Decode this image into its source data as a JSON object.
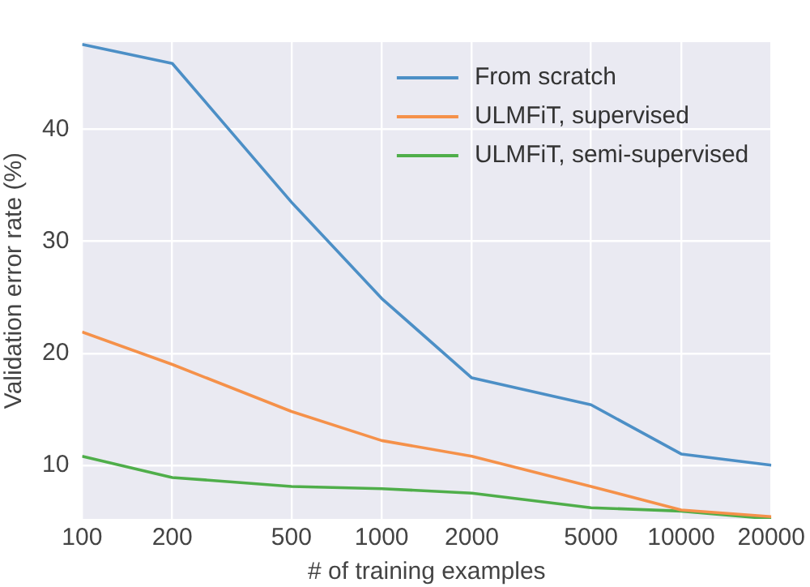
{
  "chart_data": {
    "type": "line",
    "xlabel": "# of training examples",
    "ylabel": "Validation error rate (%)",
    "log": "x",
    "x": [
      100,
      200,
      500,
      1000,
      2000,
      5000,
      10000,
      20000
    ],
    "xlim": [
      100,
      20000
    ],
    "xticks": [
      100,
      200,
      500,
      1000,
      2000,
      5000,
      10000,
      20000
    ],
    "ylim": [
      5.2,
      47.8
    ],
    "yticks": [
      10,
      20,
      30,
      40
    ],
    "grid": true,
    "legend": "top right",
    "series": [
      {
        "name": "From scratch",
        "color": "#4c8fc6",
        "values": [
          47.6,
          45.9,
          33.5,
          24.9,
          17.8,
          15.4,
          11.0,
          10.0
        ]
      },
      {
        "name": "ULMFiT, supervised",
        "color": "#f5914a",
        "values": [
          21.9,
          19.0,
          14.8,
          12.2,
          10.8,
          8.1,
          6.0,
          5.4
        ]
      },
      {
        "name": "ULMFiT, semi-supervised",
        "color": "#4fae4a",
        "values": [
          10.8,
          8.9,
          8.1,
          7.9,
          7.5,
          6.2,
          5.9,
          5.2
        ]
      }
    ]
  }
}
